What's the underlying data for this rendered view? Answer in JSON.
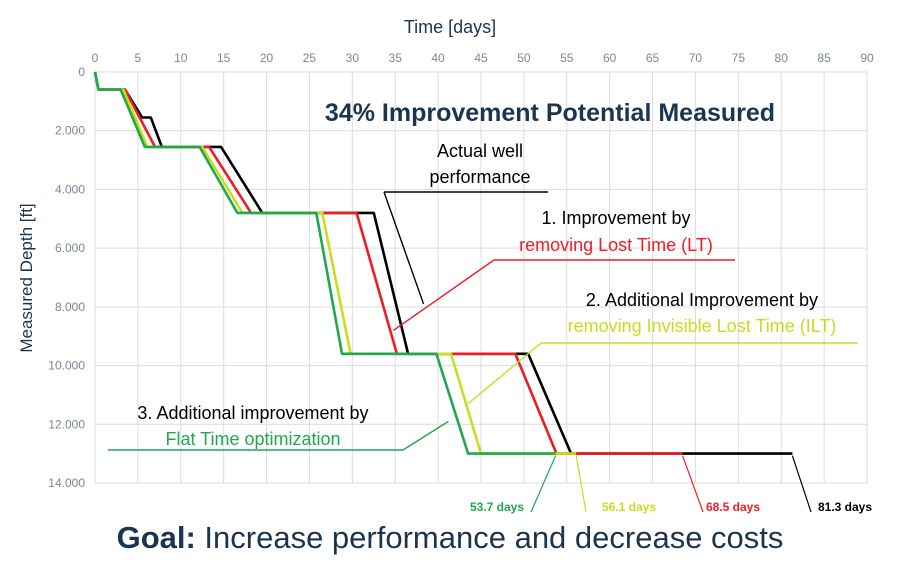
{
  "chart_data": {
    "type": "line",
    "title": "34% Improvement Potential Measured",
    "xlabel": "Time [days]",
    "ylabel": "Measured Depth [ft]",
    "xlim": [
      0,
      90
    ],
    "ylim": [
      0,
      14000
    ],
    "y_inverted": true,
    "x_axis_position": "top",
    "grid": true,
    "x_ticks": [
      "0",
      "5",
      "10",
      "15",
      "20",
      "25",
      "30",
      "35",
      "40",
      "45",
      "50",
      "55",
      "60",
      "65",
      "70",
      "75",
      "80",
      "85",
      "90"
    ],
    "y_ticks": [
      "0",
      "2.000",
      "4.000",
      "6.000",
      "8.000",
      "10.000",
      "12.000",
      "14.000"
    ],
    "series": [
      {
        "color": "#000000",
        "points": [
          [
            0,
            0
          ],
          [
            0.4,
            600
          ],
          [
            3.5,
            600
          ],
          [
            5.5,
            1550
          ],
          [
            6.5,
            1550
          ],
          [
            7.8,
            2550
          ],
          [
            14.7,
            2550
          ],
          [
            19.5,
            4800
          ],
          [
            32.5,
            4800
          ],
          [
            36.5,
            9600
          ],
          [
            50.5,
            9600
          ],
          [
            55.5,
            13000
          ],
          [
            81.3,
            13000
          ]
        ]
      },
      {
        "color": "#ee1c25",
        "points": [
          [
            0,
            0
          ],
          [
            0.4,
            600
          ],
          [
            3.5,
            600
          ],
          [
            7.0,
            2550
          ],
          [
            13.3,
            2550
          ],
          [
            18.2,
            4800
          ],
          [
            30.5,
            4800
          ],
          [
            35.2,
            9600
          ],
          [
            49.0,
            9600
          ],
          [
            53.8,
            13000
          ],
          [
            68.5,
            13000
          ]
        ]
      },
      {
        "color": "#c8dd20",
        "points": [
          [
            0,
            0
          ],
          [
            0.4,
            600
          ],
          [
            3.3,
            600
          ],
          [
            6.1,
            2550
          ],
          [
            12.5,
            2550
          ],
          [
            17.2,
            4800
          ],
          [
            26.5,
            4800
          ],
          [
            29.8,
            9600
          ],
          [
            41.5,
            9600
          ],
          [
            45.0,
            13000
          ],
          [
            56.1,
            13000
          ]
        ]
      },
      {
        "color": "#1fa84e",
        "points": [
          [
            0,
            0
          ],
          [
            0.4,
            600
          ],
          [
            3.0,
            600
          ],
          [
            5.8,
            2550
          ],
          [
            12.2,
            2550
          ],
          [
            16.6,
            4800
          ],
          [
            25.8,
            4800
          ],
          [
            28.8,
            9600
          ],
          [
            39.8,
            9600
          ],
          [
            43.5,
            13000
          ],
          [
            53.7,
            13000
          ]
        ]
      }
    ],
    "annotations": [
      {
        "lines": [
          {
            "text": "Actual well",
            "color": "#000000"
          },
          {
            "text": "performance",
            "color": "#000000"
          }
        ],
        "rule_color": "#000000",
        "pointer": [
          38.3,
          7900
        ]
      },
      {
        "lines": [
          {
            "text": "1. Improvement by",
            "color": "#000000"
          },
          {
            "text": "removing Lost Time (LT)",
            "color": "#ee1c25"
          }
        ],
        "rule_color": "#ee1c25",
        "pointer": [
          34.8,
          8800
        ]
      },
      {
        "lines": [
          {
            "text": "2. Additional Improvement by",
            "color": "#000000"
          },
          {
            "text": "removing Invisible Lost Time (ILT)",
            "color": "#c8dd20"
          }
        ],
        "rule_color": "#c8dd20",
        "pointer": [
          43.5,
          11300
        ]
      },
      {
        "lines": [
          {
            "text": "3. Additional improvement by",
            "color": "#000000"
          },
          {
            "text": "Flat Time optimization",
            "color": "#1fa84e"
          }
        ],
        "rule_color": "#1fa84e",
        "pointer": [
          41.2,
          11900
        ]
      }
    ],
    "end_labels": [
      {
        "text": "53.7 days",
        "color": "#1fa84e",
        "x": 53.7
      },
      {
        "text": "56.1 days",
        "color": "#c8dd20",
        "x": 56.1
      },
      {
        "text": "68.5 days",
        "color": "#ee1c25",
        "x": 68.5
      },
      {
        "text": "81.3 days",
        "color": "#000000",
        "x": 81.3
      }
    ]
  },
  "footer": {
    "goal_bold": "Goal:",
    "goal_text": " Increase performance and decrease costs"
  },
  "colors": {
    "axis_text": "#1b3550",
    "grid": "#dcdcdc",
    "title": "#1b3550"
  }
}
